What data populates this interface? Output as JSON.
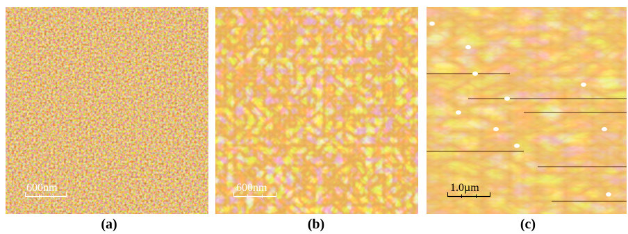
{
  "panels": [
    {
      "id": "a",
      "caption": "(a)",
      "scale_label": "600nm",
      "palette": {
        "dark": "#5a2300",
        "mid": "#c05a10",
        "light": "#ffe0a8",
        "base": "#9a4208"
      }
    },
    {
      "id": "b",
      "caption": "(b)",
      "scale_label": "600nm",
      "palette": {
        "dark": "#8a3a05",
        "mid": "#d8781e",
        "light": "#fff2d0",
        "base": "#c46516"
      }
    },
    {
      "id": "c",
      "caption": "(c)",
      "scale_label": "1.0µm",
      "palette": {
        "dark": "#6a2a00",
        "mid": "#d98a2e",
        "light": "#fbe2a8",
        "base": "#cf7a22"
      }
    }
  ]
}
